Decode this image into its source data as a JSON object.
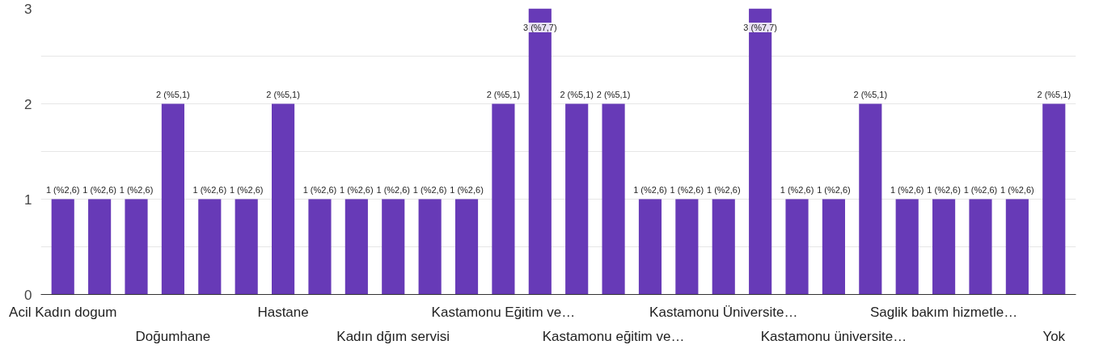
{
  "chart_data": {
    "type": "bar",
    "categories": [
      "Acil Kadın dogum",
      null,
      null,
      "Doğumhane",
      null,
      null,
      "Hastane",
      null,
      null,
      "Kadın dğım servisi",
      null,
      null,
      "Kastamonu Eğitim ve…",
      null,
      null,
      "Kastamonu eğitim ve…",
      null,
      null,
      "Kastamonu Üniversite…",
      null,
      null,
      "Kastamonu üniversite…",
      null,
      null,
      "Saglik bakım hizmetle…",
      null,
      null,
      "Yok"
    ],
    "values": [
      1,
      1,
      1,
      2,
      1,
      1,
      2,
      1,
      1,
      1,
      1,
      1,
      2,
      3,
      2,
      2,
      1,
      1,
      1,
      3,
      1,
      1,
      2,
      1,
      1,
      1,
      1,
      2
    ],
    "value_labels": [
      "1 (%2,6)",
      "1 (%2,6)",
      "1 (%2,6)",
      "2 (%5,1)",
      "1 (%2,6)",
      "1 (%2,6)",
      "2 (%5,1)",
      "1 (%2,6)",
      "1 (%2,6)",
      "1 (%2,6)",
      "1 (%2,6)",
      "1 (%2,6)",
      "2 (%5,1)",
      "3 (%7,7)",
      "2 (%5,1)",
      "2 (%5,1)",
      "1 (%2,6)",
      "1 (%2,6)",
      "1 (%2,6)",
      "3 (%7,7)",
      "1 (%2,6)",
      "1 (%2,6)",
      "2 (%5,1)",
      "1 (%2,6)",
      "1 (%2,6)",
      "1 (%2,6)",
      "1 (%2,6)",
      "2 (%5,1)"
    ],
    "color": "#673ab7",
    "ylim": [
      0,
      3
    ],
    "yticks": [
      0,
      {
        "value": 0.5,
        "label": null
      },
      1,
      {
        "value": 1.5,
        "label": null
      },
      2,
      {
        "value": 2.5,
        "label": null
      },
      3
    ],
    "grid": "y"
  }
}
